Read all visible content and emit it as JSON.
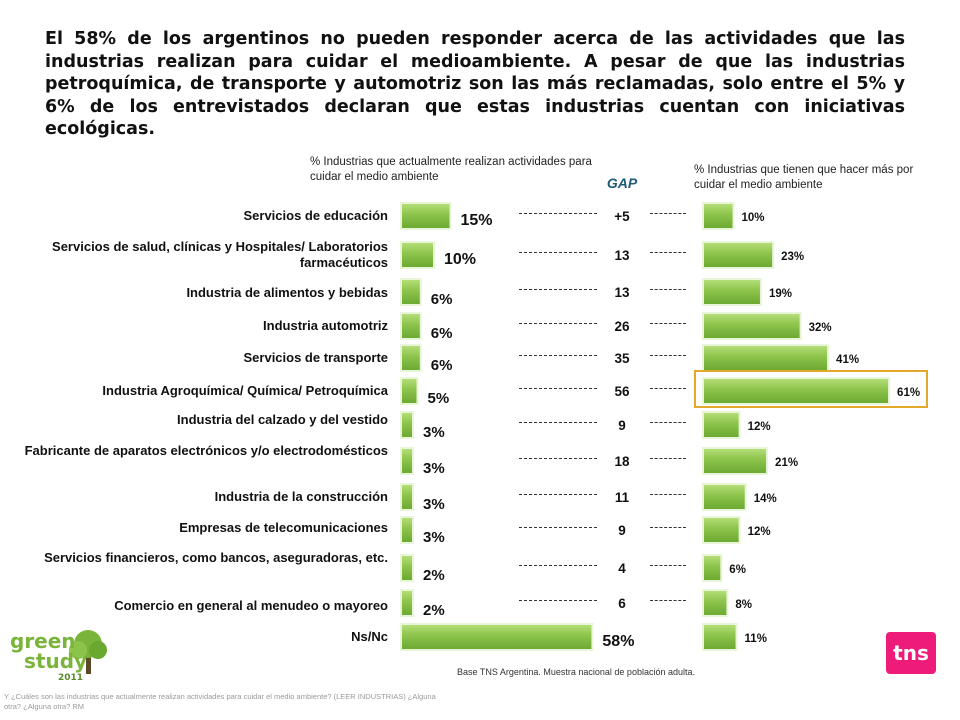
{
  "headline": "El 58% de los argentinos no pueden responder acerca de las actividades que las industrias realizan para cuidar el medioambiente. A pesar de que las industrias petroquímica, de transporte y automotriz son las más reclamadas, solo entre el 5% y 6% de los entrevistados declaran que estas industrias cuentan con iniciativas ecológicas.",
  "left_subtitle": "% Industrias que actualmente realizan actividades para cuidar el medio ambiente",
  "right_subtitle": "% Industrias que tienen que hacer más por cuidar el medio ambiente",
  "gap_title": "GAP",
  "colors": {
    "bar_fill": "#8cc34b",
    "bar_light": "#b8e07c",
    "highlight": "#e4a92c",
    "gap_title": "#1f5a78",
    "brand_pink": "#ee1b7a"
  },
  "chart_data": {
    "type": "bar",
    "categories": [
      "Servicios de educación",
      "Servicios de salud, clínicas y Hospitales/ Laboratorios farmacéuticos",
      "Industria de alimentos y bebidas",
      "Industria automotriz",
      "Servicios de transporte",
      "Industria Agroquímica/ Química/ Petroquímica",
      "Industria del calzado y del vestido",
      "Fabricante de aparatos electrónicos y/o electrodomésticos",
      "Industria de la construcción",
      "Empresas de telecomunicaciones",
      "Servicios financieros, como bancos, aseguradoras, etc.",
      "Comercio en general al menudeo o mayoreo",
      "Ns/Nc"
    ],
    "series": [
      {
        "name": "% Industrias que actualmente realizan actividades para cuidar el medio ambiente",
        "values": [
          15,
          10,
          6,
          6,
          6,
          5,
          3,
          3,
          3,
          3,
          2,
          2,
          58
        ],
        "labels": [
          "15%",
          "10%",
          "6%",
          "6%",
          "6%",
          "5%",
          "3%",
          "3%",
          "3%",
          "3%",
          "2%",
          "2%",
          "58%"
        ]
      },
      {
        "name": "% Industrias que tienen que hacer más por cuidar el medio ambiente",
        "values": [
          10,
          23,
          19,
          32,
          41,
          61,
          12,
          21,
          14,
          12,
          6,
          8,
          11
        ],
        "labels": [
          "10%",
          "23%",
          "19%",
          "32%",
          "41%",
          "61%",
          "12%",
          "21%",
          "14%",
          "12%",
          "6%",
          "8%",
          "11%"
        ]
      }
    ],
    "gap": [
      "+5",
      "13",
      "13",
      "26",
      "35",
      "56",
      "9",
      "18",
      "11",
      "9",
      "4",
      "6"
    ],
    "highlighted_category": "Industria Agroquímica/ Química/ Petroquímica"
  },
  "base_note": "Base TNS Argentina. Muestra nacional de población adulta.",
  "footnote": "Y ¿Cuáles son las industrias que actualmente realizan actividades para cuidar el medio ambiente? (LEER INDUSTRIAS) ¿Alguna otra? ¿Alguna otra? RM",
  "logo_green": {
    "line1": "green",
    "line2": "study",
    "year": "2011"
  },
  "logo_tns": "tns"
}
